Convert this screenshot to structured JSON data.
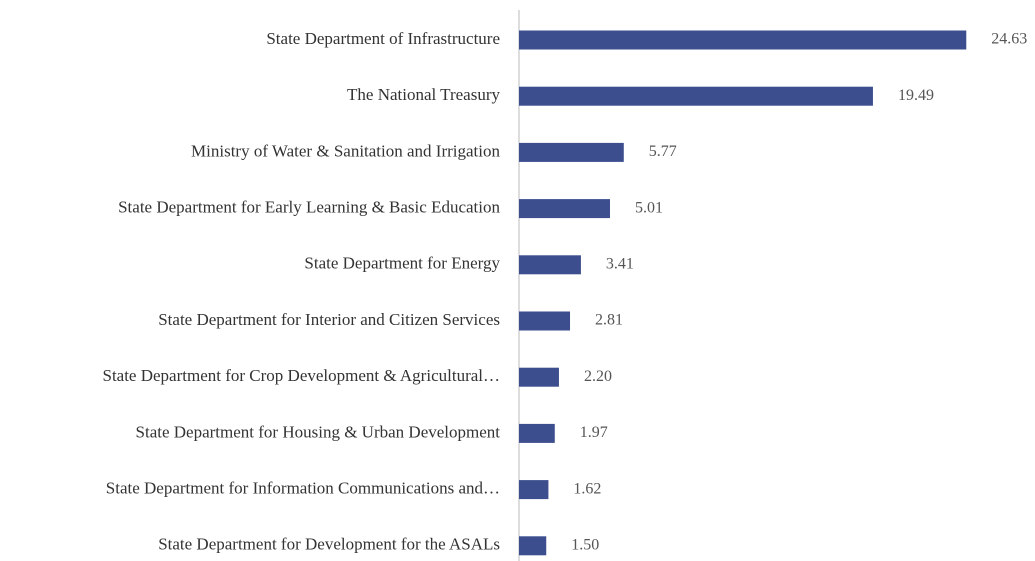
{
  "chart_data": {
    "type": "bar",
    "orientation": "horizontal",
    "categories": [
      "State Department of Infrastructure",
      "The National Treasury",
      "Ministry of Water & Sanitation and Irrigation",
      "State Department for Early Learning & Basic Education",
      "State Department for Energy",
      "State Department for Interior and Citizen Services",
      "State Department for Crop Development & Agricultural…",
      "State Department for Housing & Urban Development",
      "State Department for Information Communications and…",
      "State Department for Development for the ASALs"
    ],
    "values": [
      24.63,
      19.49,
      5.77,
      5.01,
      3.41,
      2.81,
      2.2,
      1.97,
      1.62,
      1.5
    ],
    "value_labels": [
      "24.63",
      "19.49",
      "5.77",
      "5.01",
      "3.41",
      "2.81",
      "2.20",
      "1.97",
      "1.62",
      "1.50"
    ],
    "color": "#3c4e8e",
    "xlim": [
      0,
      25
    ]
  }
}
